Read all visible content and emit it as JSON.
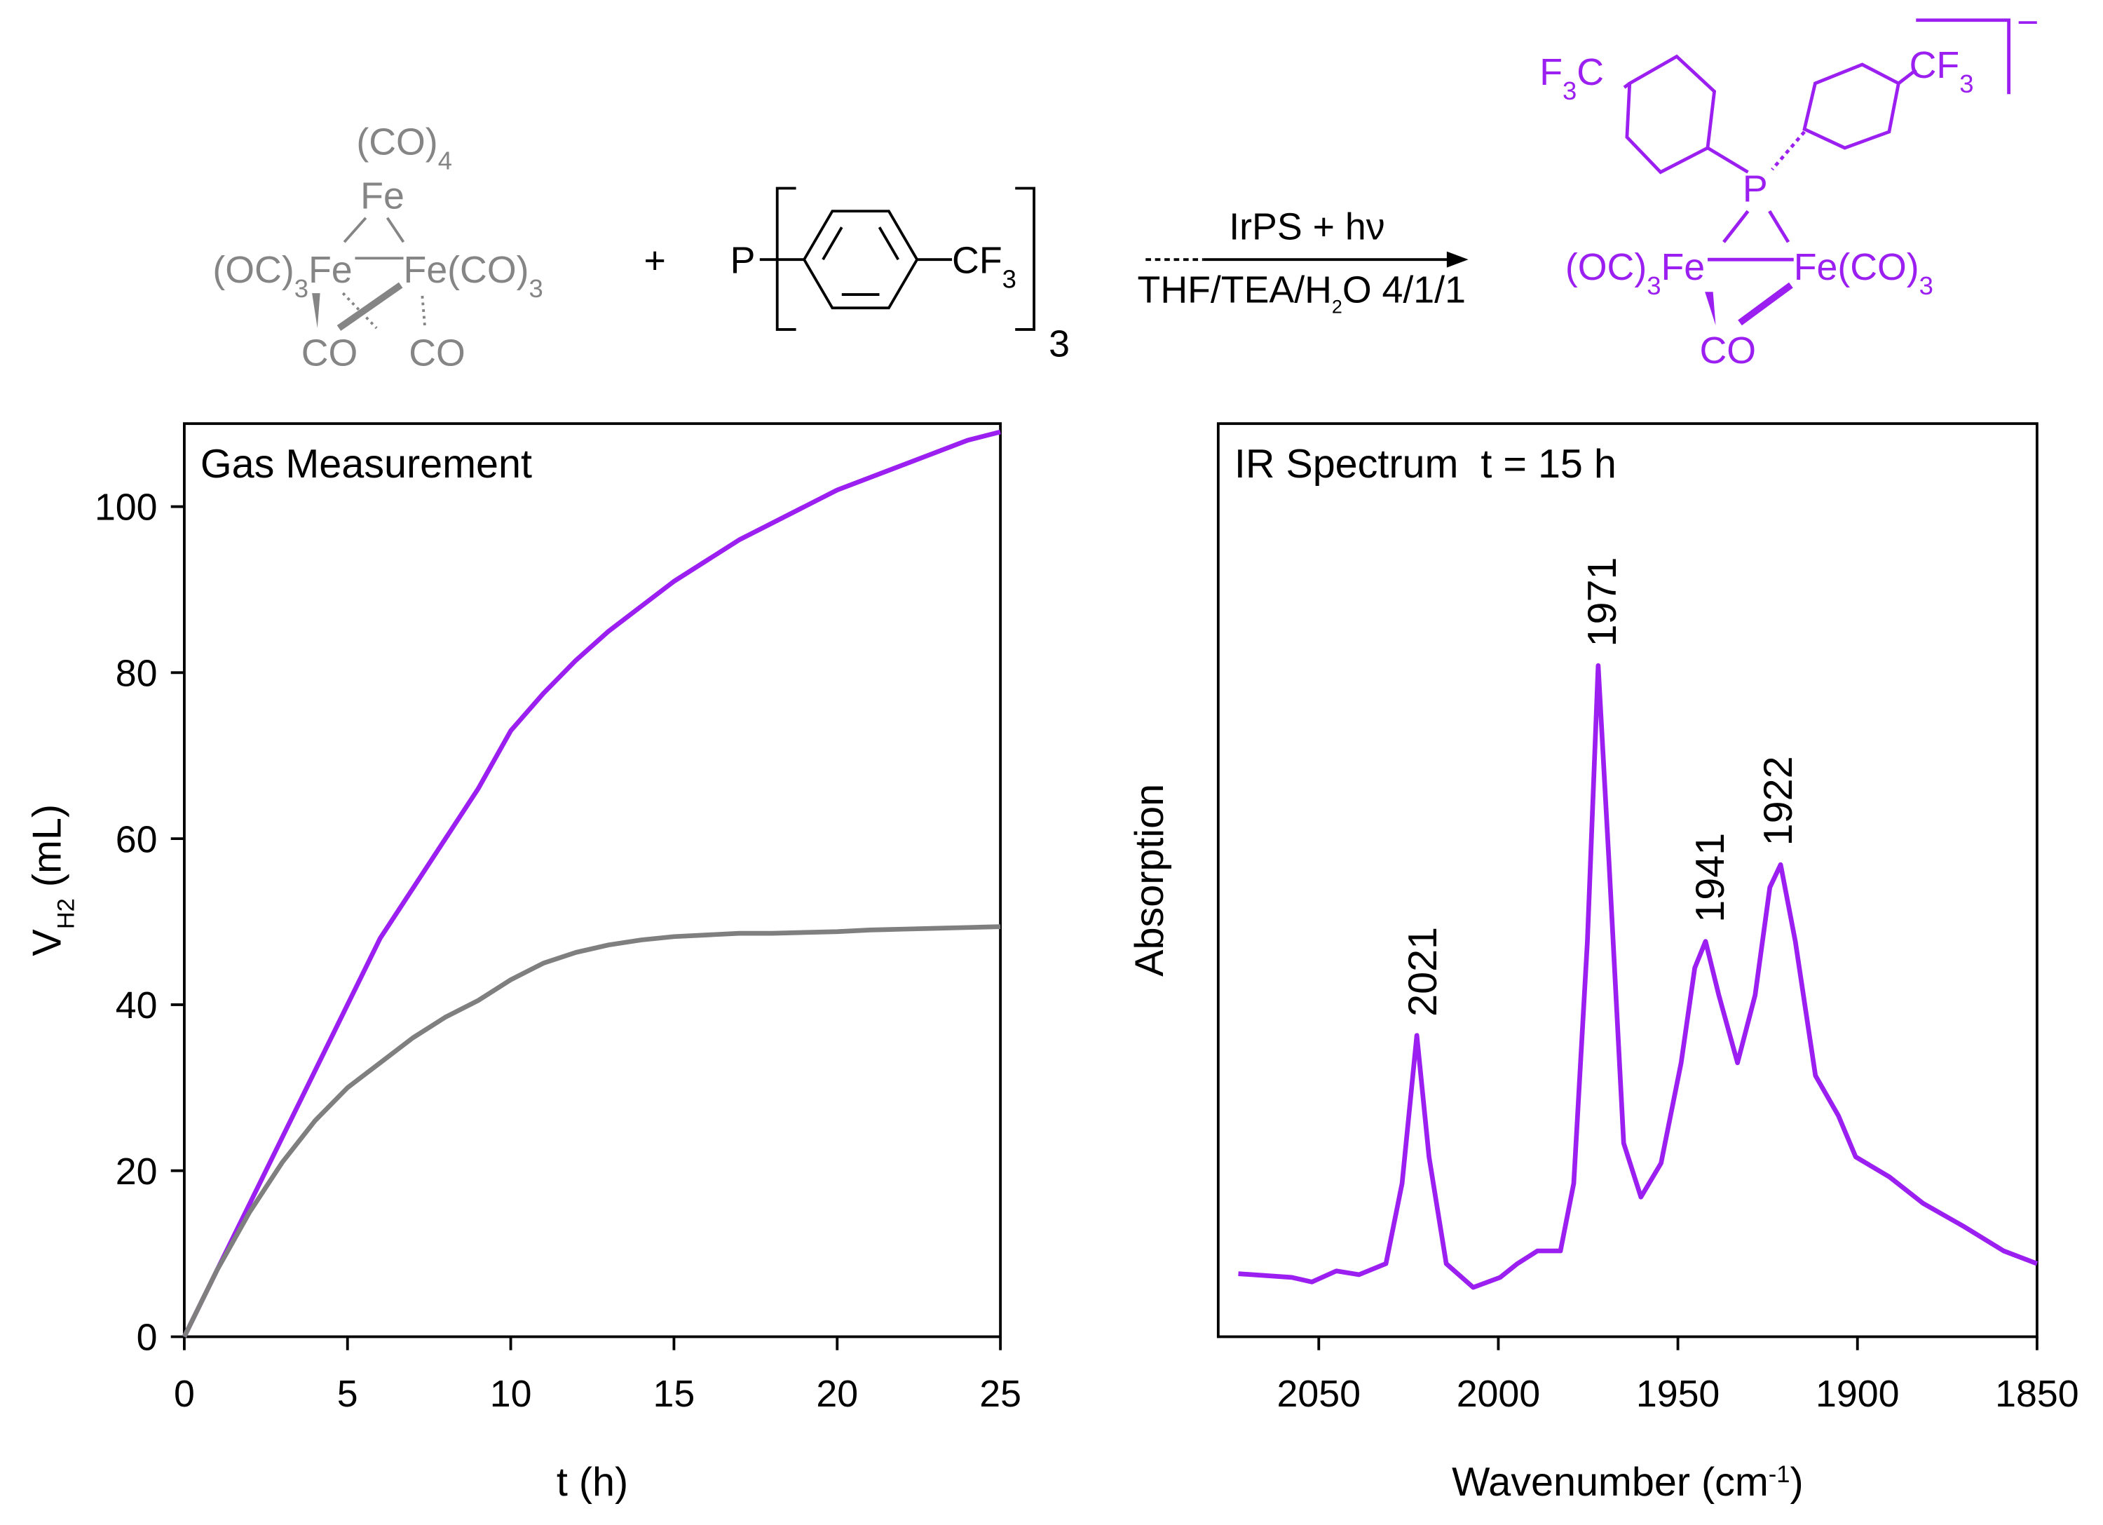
{
  "scheme": {
    "reactant": {
      "top": [
        "(CO)",
        "4"
      ],
      "fe_top": "Fe",
      "left": [
        "(OC)",
        "3",
        "Fe"
      ],
      "right": [
        "Fe(CO)",
        "3"
      ],
      "co_left": "CO",
      "co_right": "CO"
    },
    "plus": "+",
    "ligand": {
      "p": "P",
      "cf3": [
        "CF",
        "3"
      ],
      "count": "3"
    },
    "arrow": {
      "above": "IrPS + hν",
      "below": [
        "THF/TEA/H",
        "2",
        "O 4/1/1"
      ]
    },
    "product": {
      "f3c": [
        "F",
        "3",
        "C"
      ],
      "cf3": [
        "CF",
        "3"
      ],
      "p": "P",
      "left": [
        "(OC)",
        "3",
        "Fe"
      ],
      "right": [
        "Fe(CO)",
        "3"
      ],
      "co": "CO",
      "charge": "−"
    }
  },
  "chart_data": [
    {
      "type": "line",
      "title": "Gas Measurement",
      "x_label": "t (h)",
      "y_label": {
        "text": "V",
        "sub": "H2",
        "after": " (mL)"
      },
      "x": [
        0,
        1,
        2,
        3,
        4,
        5,
        6,
        7,
        8,
        9,
        10,
        11,
        12,
        13,
        14,
        15,
        16,
        17,
        18,
        19,
        20,
        21,
        22,
        23,
        24,
        25
      ],
      "series": [
        {
          "color": "#9b1ff0",
          "values": [
            0,
            8,
            16,
            24,
            32,
            40,
            48,
            54,
            60,
            66,
            73,
            77.5,
            81.5,
            85,
            88,
            91,
            93.5,
            96,
            98,
            100,
            102,
            103.5,
            105,
            106.5,
            108,
            109
          ]
        },
        {
          "color": "#7f7f7f",
          "values": [
            0,
            8,
            15,
            21,
            26,
            30,
            33,
            36,
            38.5,
            40.5,
            43,
            45,
            46.3,
            47.2,
            47.8,
            48.2,
            48.4,
            48.6,
            48.6,
            48.7,
            48.8,
            49,
            49.1,
            49.2,
            49.3,
            49.4
          ]
        }
      ],
      "xlim": [
        0,
        25
      ],
      "xticks": [
        0,
        5,
        10,
        15,
        20,
        25
      ],
      "ylim": [
        0,
        110
      ],
      "yticks": [
        0,
        20,
        40,
        60,
        80,
        100
      ]
    },
    {
      "type": "line",
      "title": "IR Spectrum  t = 15 h",
      "x_label": {
        "text": "Wavenumber (cm",
        "sup": "-1",
        "after": ")"
      },
      "y_label": "Absorption",
      "x": [
        2072.4,
        2057.5,
        2051.9,
        2045.1,
        2038.8,
        2031.3,
        2026.8,
        2022.7,
        2019.3,
        2014.5,
        2007.0,
        1999.5,
        1994.7,
        1989.1,
        1982.7,
        1979.0,
        1975.2,
        1972.2,
        1969.2,
        1965.1,
        1960.3,
        1954.7,
        1949.1,
        1945.3,
        1942.3,
        1938.6,
        1933.4,
        1928.5,
        1924.4,
        1921.4,
        1917.3,
        1911.7,
        1905.3,
        1900.5,
        1891.1,
        1881.7,
        1870.5,
        1859.3,
        1850.0
      ],
      "series": [
        {
          "color": "#9b1ff0",
          "values": [
            6.9,
            6.5,
            6.0,
            7.2,
            6.8,
            8.0,
            16.8,
            33.0,
            19.7,
            8.0,
            5.4,
            6.5,
            8.0,
            9.4,
            9.4,
            16.8,
            43.3,
            73.5,
            52.1,
            21.2,
            15.3,
            19.0,
            30.0,
            40.4,
            43.3,
            37.4,
            30.0,
            37.4,
            49.2,
            51.7,
            43.3,
            28.6,
            24.2,
            19.7,
            17.5,
            14.6,
            12.1,
            9.4,
            8.0
          ]
        }
      ],
      "peak_labels": [
        2021,
        1971,
        1941,
        1922
      ],
      "xlim": [
        2078,
        1850
      ],
      "xticks": [
        2050,
        2000,
        1950,
        1900,
        1850
      ],
      "ylim": [
        0,
        100
      ]
    }
  ]
}
